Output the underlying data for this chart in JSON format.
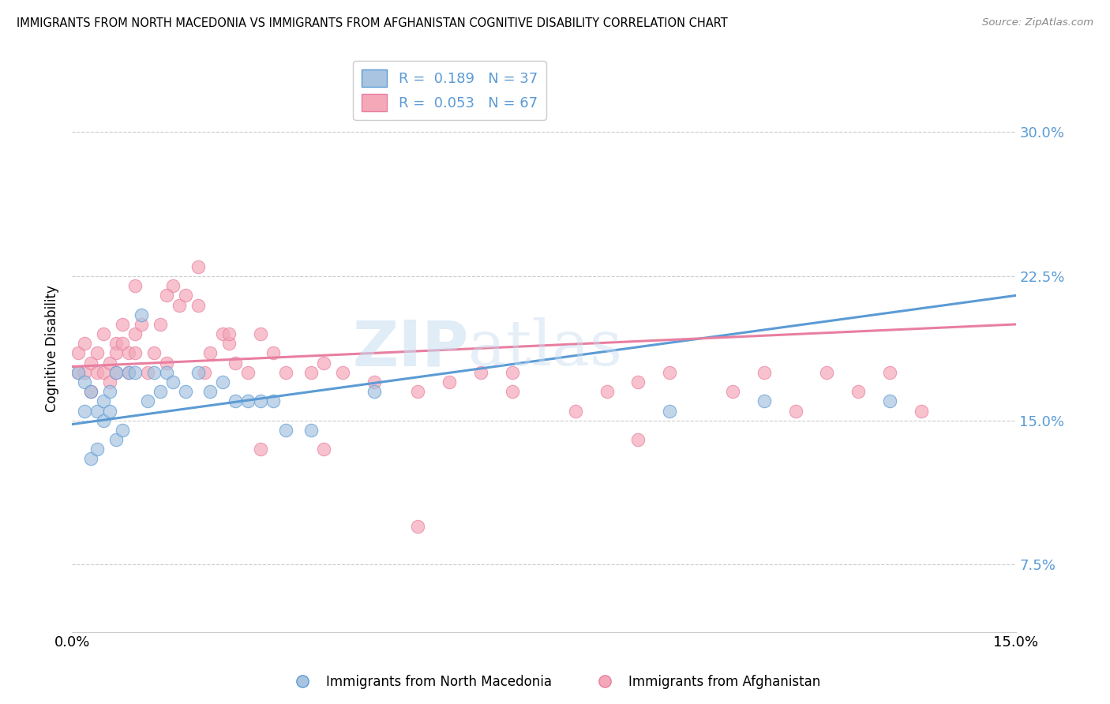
{
  "title": "IMMIGRANTS FROM NORTH MACEDONIA VS IMMIGRANTS FROM AFGHANISTAN COGNITIVE DISABILITY CORRELATION CHART",
  "source": "Source: ZipAtlas.com",
  "xlabel_bottom_left": "0.0%",
  "xlabel_bottom_right": "15.0%",
  "ylabel": "Cognitive Disability",
  "yticks": [
    "7.5%",
    "15.0%",
    "22.5%",
    "30.0%"
  ],
  "ytick_vals": [
    0.075,
    0.15,
    0.225,
    0.3
  ],
  "xlim": [
    0.0,
    0.15
  ],
  "ylim": [
    0.04,
    0.335
  ],
  "color_blue": "#a8c4e0",
  "color_pink": "#f4a8b8",
  "line_color_blue": "#5b9bd5",
  "line_color_pink": "#e87fa0",
  "watermark_zip": "ZIP",
  "watermark_atlas": "atlas",
  "legend_label1": "Immigrants from North Macedonia",
  "legend_label2": "Immigrants from Afghanistan",
  "blue_scatter_x": [
    0.001,
    0.002,
    0.002,
    0.003,
    0.003,
    0.004,
    0.004,
    0.005,
    0.005,
    0.006,
    0.006,
    0.007,
    0.007,
    0.008,
    0.009,
    0.01,
    0.011,
    0.012,
    0.013,
    0.014,
    0.015,
    0.016,
    0.018,
    0.02,
    0.022,
    0.024,
    0.026,
    0.028,
    0.03,
    0.032,
    0.034,
    0.038,
    0.048,
    0.095,
    0.11,
    0.13
  ],
  "blue_scatter_y": [
    0.175,
    0.17,
    0.155,
    0.165,
    0.13,
    0.135,
    0.155,
    0.16,
    0.15,
    0.165,
    0.155,
    0.175,
    0.14,
    0.145,
    0.175,
    0.175,
    0.205,
    0.16,
    0.175,
    0.165,
    0.175,
    0.17,
    0.165,
    0.175,
    0.165,
    0.17,
    0.16,
    0.16,
    0.16,
    0.16,
    0.145,
    0.145,
    0.165,
    0.155,
    0.16,
    0.16
  ],
  "pink_scatter_x": [
    0.001,
    0.001,
    0.002,
    0.002,
    0.003,
    0.003,
    0.004,
    0.004,
    0.005,
    0.005,
    0.006,
    0.006,
    0.007,
    0.007,
    0.007,
    0.008,
    0.008,
    0.009,
    0.009,
    0.01,
    0.01,
    0.011,
    0.012,
    0.013,
    0.014,
    0.015,
    0.016,
    0.017,
    0.018,
    0.02,
    0.021,
    0.022,
    0.024,
    0.025,
    0.026,
    0.028,
    0.03,
    0.032,
    0.034,
    0.038,
    0.04,
    0.043,
    0.048,
    0.055,
    0.06,
    0.065,
    0.07,
    0.08,
    0.085,
    0.09,
    0.095,
    0.105,
    0.11,
    0.115,
    0.12,
    0.125,
    0.13,
    0.135,
    0.01,
    0.015,
    0.02,
    0.025,
    0.03,
    0.04,
    0.055,
    0.07,
    0.09
  ],
  "pink_scatter_y": [
    0.175,
    0.185,
    0.175,
    0.19,
    0.18,
    0.165,
    0.175,
    0.185,
    0.175,
    0.195,
    0.18,
    0.17,
    0.19,
    0.185,
    0.175,
    0.19,
    0.2,
    0.185,
    0.175,
    0.195,
    0.185,
    0.2,
    0.175,
    0.185,
    0.2,
    0.18,
    0.22,
    0.21,
    0.215,
    0.21,
    0.175,
    0.185,
    0.195,
    0.19,
    0.18,
    0.175,
    0.195,
    0.185,
    0.175,
    0.175,
    0.18,
    0.175,
    0.17,
    0.165,
    0.17,
    0.175,
    0.175,
    0.155,
    0.165,
    0.17,
    0.175,
    0.165,
    0.175,
    0.155,
    0.175,
    0.165,
    0.175,
    0.155,
    0.22,
    0.215,
    0.23,
    0.195,
    0.135,
    0.135,
    0.095,
    0.165,
    0.14
  ],
  "blue_line_x0": 0.0,
  "blue_line_y0": 0.148,
  "blue_line_x1": 0.15,
  "blue_line_y1": 0.215,
  "pink_line_x0": 0.0,
  "pink_line_y0": 0.178,
  "pink_line_x1": 0.15,
  "pink_line_y1": 0.2
}
